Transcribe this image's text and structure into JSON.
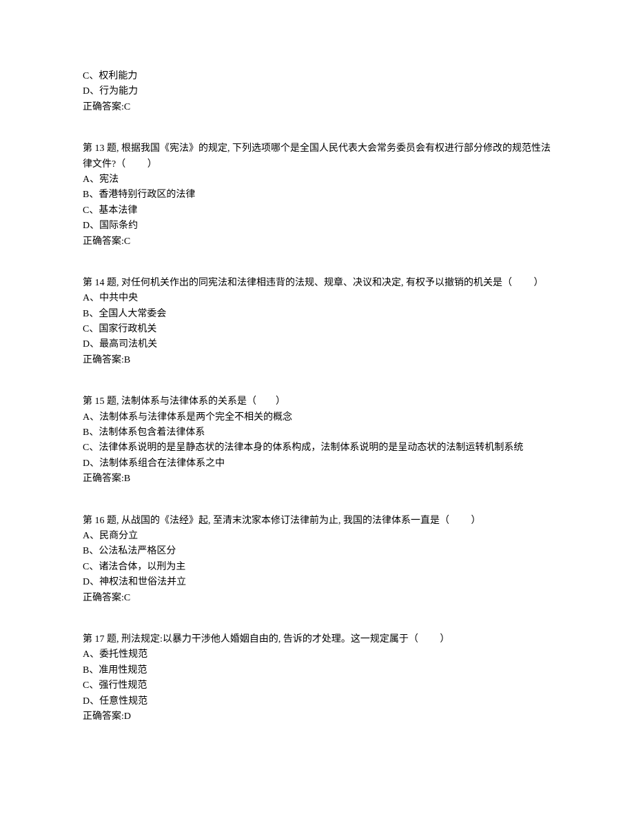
{
  "orphan": {
    "option_c": "C、权利能力",
    "option_d": "D、行为能力",
    "answer": "正确答案:C"
  },
  "q13": {
    "stem": "第 13 题, 根据我国《宪法》的规定, 下列选项哪个是全国人民代表大会常务委员会有权进行部分修改的规范性法律文件?（　　 ）",
    "option_a": "A、宪法",
    "option_b": "B、香港特别行政区的法律",
    "option_c": "C、基本法律",
    "option_d": "D、国际条约",
    "answer": "正确答案:C"
  },
  "q14": {
    "stem": "第 14 题, 对任何机关作出的同宪法和法律相违背的法规、规章、决议和决定, 有权予以撤销的机关是（　　 ）",
    "option_a": "A、中共中央",
    "option_b": "B、全国人大常委会",
    "option_c": "C、国家行政机关",
    "option_d": "D、最高司法机关",
    "answer": "正确答案:B"
  },
  "q15": {
    "stem": "第 15 题, 法制体系与法律体系的关系是（　　）",
    "option_a": "A、法制体系与法律体系是两个完全不相关的概念",
    "option_b": "B、法制体系包含着法律体系",
    "option_c": "C、法律体系说明的是呈静态状的法律本身的体系构成，法制体系说明的是呈动态状的法制运转机制系统",
    "option_d": "D、法制体系组合在法律体系之中",
    "answer": "正确答案:B"
  },
  "q16": {
    "stem": "第 16 题, 从战国的《法经》起, 至清末沈家本修订法律前为止, 我国的法律体系一直是（　　 ）",
    "option_a": "A、民商分立",
    "option_b": "B、公法私法严格区分",
    "option_c": "C、诸法合体，以刑为主",
    "option_d": "D、神权法和世俗法并立",
    "answer": "正确答案:C"
  },
  "q17": {
    "stem": "第 17 题, 刑法规定:以暴力干涉他人婚姻自由的, 告诉的才处理。这一规定属于（　　 ）",
    "option_a": "A、委托性规范",
    "option_b": "B、准用性规范",
    "option_c": "C、强行性规范",
    "option_d": "D、任意性规范",
    "answer": "正确答案:D"
  }
}
